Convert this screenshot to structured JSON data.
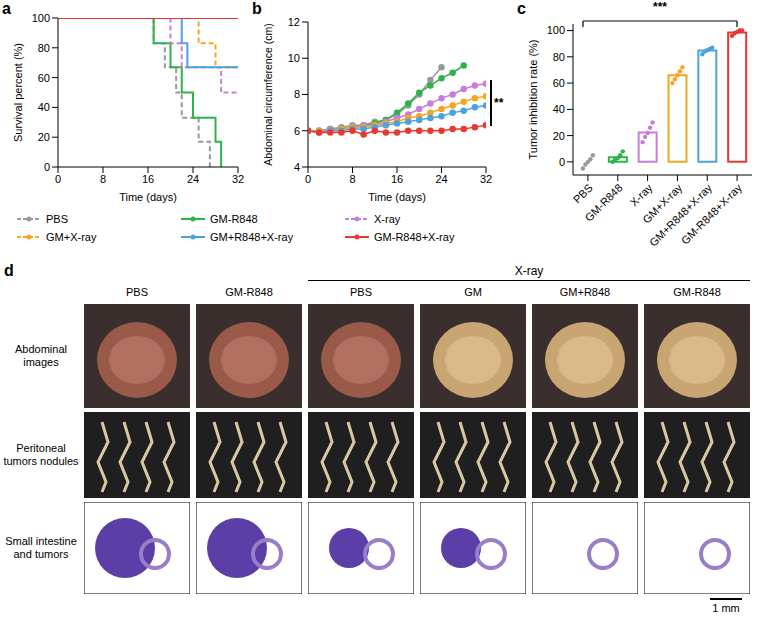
{
  "chart_data": [
    {
      "panel": "a",
      "type": "line",
      "x_label": "Time (days)",
      "y_label": "Survival percent (%)",
      "xlim": [
        0,
        32
      ],
      "xticks": [
        0,
        8,
        16,
        24,
        32
      ],
      "ylim": [
        0,
        100
      ],
      "yticks": [
        0,
        20,
        40,
        60,
        80,
        100
      ],
      "grid": false,
      "legend": "bottom",
      "series": [
        {
          "name": "PBS",
          "color": "#999999",
          "line_style": "dashed",
          "x": [
            0,
            17,
            19,
            21,
            22,
            25,
            27
          ],
          "values": [
            100,
            83,
            67,
            50,
            33,
            17,
            0
          ]
        },
        {
          "name": "GM-R848",
          "color": "#2db34a",
          "line_style": "solid",
          "x": [
            0,
            17,
            20,
            22,
            24,
            28,
            29
          ],
          "values": [
            100,
            83,
            67,
            50,
            33,
            17,
            0
          ]
        },
        {
          "name": "X-ray",
          "color": "#c77ddb",
          "line_style": "dashed",
          "x": [
            0,
            20,
            22,
            29,
            32
          ],
          "values": [
            100,
            83,
            67,
            50,
            50
          ]
        },
        {
          "name": "GM+X-ray",
          "color": "#f5a522",
          "line_style": "dashed",
          "x": [
            0,
            25,
            28,
            32
          ],
          "values": [
            100,
            83,
            67,
            67
          ]
        },
        {
          "name": "GM+R848+X-ray",
          "color": "#4aa3df",
          "line_style": "solid",
          "x": [
            0,
            22,
            23,
            32
          ],
          "values": [
            100,
            83,
            67,
            67
          ]
        },
        {
          "name": "GM-R848+X-ray",
          "color": "#e8392f",
          "line_style": "solid",
          "x": [
            0,
            32
          ],
          "values": [
            100,
            100
          ]
        }
      ]
    },
    {
      "panel": "b",
      "type": "line",
      "x_label": "Time (days)",
      "y_label": "Abdominal circumference (cm)",
      "xlim": [
        0,
        32
      ],
      "xticks": [
        0,
        8,
        16,
        24,
        32
      ],
      "ylim": [
        4,
        12
      ],
      "yticks": [
        4,
        6,
        8,
        10,
        12
      ],
      "grid": false,
      "marker": "circle",
      "annotation": "**",
      "x": [
        0,
        2,
        4,
        6,
        8,
        10,
        12,
        14,
        16,
        18,
        20,
        22,
        24,
        26,
        28,
        30,
        32
      ],
      "series": [
        {
          "name": "PBS",
          "color": "#999999",
          "values": [
            6.0,
            6.0,
            6.1,
            6.2,
            6.3,
            6.3,
            6.5,
            6.6,
            6.9,
            7.4,
            8.0,
            8.8,
            9.5,
            null,
            null,
            null,
            null
          ]
        },
        {
          "name": "GM-R848",
          "color": "#2db34a",
          "values": [
            6.0,
            6.0,
            6.1,
            6.1,
            6.2,
            6.3,
            6.4,
            6.6,
            7.0,
            7.5,
            8.1,
            8.5,
            8.9,
            9.2,
            9.6,
            null,
            null
          ]
        },
        {
          "name": "X-ray",
          "color": "#c77ddb",
          "values": [
            6.0,
            6.0,
            6.1,
            6.1,
            6.2,
            6.3,
            6.3,
            6.5,
            6.7,
            6.9,
            7.2,
            7.5,
            7.8,
            8.0,
            8.3,
            8.5,
            8.6
          ]
        },
        {
          "name": "GM+X-ray",
          "color": "#f5a522",
          "values": [
            6.0,
            6.0,
            6.0,
            6.1,
            6.2,
            6.2,
            6.3,
            6.4,
            6.5,
            6.7,
            6.8,
            7.0,
            7.2,
            7.4,
            7.6,
            7.8,
            7.9
          ]
        },
        {
          "name": "GM+R848+X-ray",
          "color": "#4aa3df",
          "values": [
            6.0,
            5.9,
            6.0,
            6.0,
            6.1,
            6.1,
            6.2,
            6.3,
            6.4,
            6.5,
            6.6,
            6.7,
            6.8,
            7.0,
            7.1,
            7.3,
            7.4
          ]
        },
        {
          "name": "GM-R848+X-ray",
          "color": "#e8392f",
          "values": [
            6.0,
            5.9,
            5.9,
            5.9,
            6.0,
            5.8,
            6.0,
            5.9,
            5.9,
            6.0,
            6.0,
            6.0,
            6.0,
            6.1,
            6.1,
            6.2,
            6.3
          ]
        }
      ]
    },
    {
      "panel": "c",
      "type": "bar",
      "y_label": "Tumor inhibition rate (%)",
      "categories": [
        "PBS",
        "GM-R848",
        "X-ray",
        "GM+X-ray",
        "GM+R848+X-ray",
        "GM-R848+X-ray"
      ],
      "values": [
        0,
        3.6,
        22.4,
        66,
        84.8,
        98.6
      ],
      "points": [
        [
          -5,
          -2,
          0,
          2,
          5
        ],
        [
          0,
          2,
          3,
          5,
          8
        ],
        [
          15,
          19,
          22,
          26,
          30
        ],
        [
          60,
          63,
          66,
          69,
          72
        ],
        [
          82,
          84,
          85,
          86,
          87
        ],
        [
          96,
          98,
          99,
          100,
          100
        ]
      ],
      "colors": [
        "#999999",
        "#2db34a",
        "#c77ddb",
        "#f5a522",
        "#4aa3df",
        "#e8392f"
      ],
      "ylim": [
        -10,
        105
      ],
      "yticks": [
        0,
        20,
        40,
        60,
        80,
        100
      ],
      "grid": false,
      "annotation": "***"
    }
  ],
  "figure_d": {
    "panel": "d",
    "column_groups": [
      {
        "header": null,
        "columns": [
          "PBS",
          "GM-R848"
        ]
      },
      {
        "header": "X-ray",
        "columns": [
          "PBS",
          "GM",
          "GM+R848",
          "GM-R848"
        ]
      }
    ],
    "rows": [
      "Abdominal images",
      "Peritoneal tumors nodules",
      "Small intestine and tumors"
    ],
    "scale_bar": "1 mm"
  }
}
